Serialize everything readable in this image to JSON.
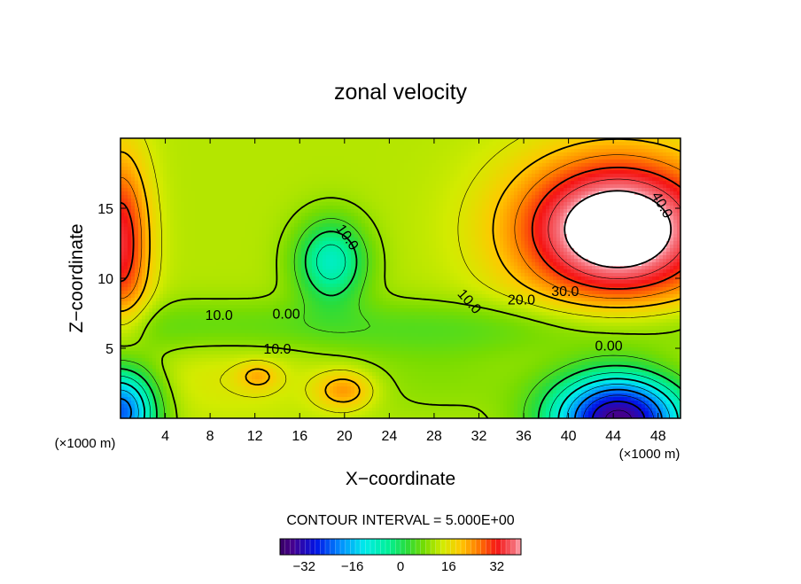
{
  "chart_data": {
    "type": "heatmap",
    "title": "zonal velocity",
    "xlabel": "X−coordinate",
    "ylabel": "Z−coordinate",
    "x_unit_left": "(×1000 m)",
    "x_unit_right": "(×1000 m)",
    "xlim": [
      0,
      50
    ],
    "ylim": [
      0,
      20
    ],
    "x_ticks": [
      "4",
      "8",
      "12",
      "16",
      "20",
      "24",
      "28",
      "32",
      "36",
      "40",
      "44",
      "48"
    ],
    "x_tick_values": [
      4,
      8,
      12,
      16,
      20,
      24,
      28,
      32,
      36,
      40,
      44,
      48
    ],
    "y_ticks": [
      "5",
      "10",
      "15"
    ],
    "y_tick_values": [
      5,
      10,
      15
    ],
    "contour_interval": 5,
    "footer": "CONTOUR INTERVAL = 5.000E+00",
    "colorbar": {
      "range": [
        -40,
        40
      ],
      "tick_labels": [
        "−32",
        "−16",
        "0",
        "16",
        "32"
      ],
      "tick_values": [
        -32,
        -16,
        0,
        16,
        32
      ]
    },
    "contour_labels": [
      {
        "text": "10.0",
        "x": 8.8,
        "z": 7.3,
        "angle": 0
      },
      {
        "text": "0.00",
        "x": 14.8,
        "z": 7.4,
        "angle": 0
      },
      {
        "text": "10.0",
        "x": 14.0,
        "z": 4.9,
        "angle": 0
      },
      {
        "text": "10.0",
        "x": 20.2,
        "z": 12.9,
        "angle": 55
      },
      {
        "text": "10.0",
        "x": 31.1,
        "z": 8.3,
        "angle": 48
      },
      {
        "text": "20.0",
        "x": 35.8,
        "z": 8.4,
        "angle": 0
      },
      {
        "text": "30.0",
        "x": 39.7,
        "z": 9.0,
        "angle": 0
      },
      {
        "text": "40.0",
        "x": 48.3,
        "z": 15.2,
        "angle": 60
      },
      {
        "text": "0.00",
        "x": 43.6,
        "z": 5.1,
        "angle": 0
      }
    ],
    "features": [
      {
        "kind": "jet",
        "value": 45,
        "x": 44.4,
        "z": 13.5,
        "sx": 9.0,
        "sz": 5.2
      },
      {
        "kind": "jet",
        "value": 30,
        "x": 0.0,
        "z": 12.5,
        "sx": 2.6,
        "sz": 6.5
      },
      {
        "kind": "jet",
        "value": -42,
        "x": 44.5,
        "z": 0.0,
        "sx": 6.0,
        "sz": 3.4
      },
      {
        "kind": "jet",
        "value": -28,
        "x": 0.0,
        "z": 0.5,
        "sx": 3.2,
        "sz": 3.2
      },
      {
        "kind": "jet",
        "value": -12,
        "x": 18.8,
        "z": 11.2,
        "sx": 3.2,
        "sz": 3.0
      },
      {
        "kind": "jet",
        "value": 20,
        "x": 20.0,
        "z": 2.0,
        "sx": 2.6,
        "sz": 1.4
      },
      {
        "kind": "jet",
        "value": 16,
        "x": 12.3,
        "z": 3.0,
        "sx": 1.8,
        "sz": 1.0
      }
    ]
  }
}
